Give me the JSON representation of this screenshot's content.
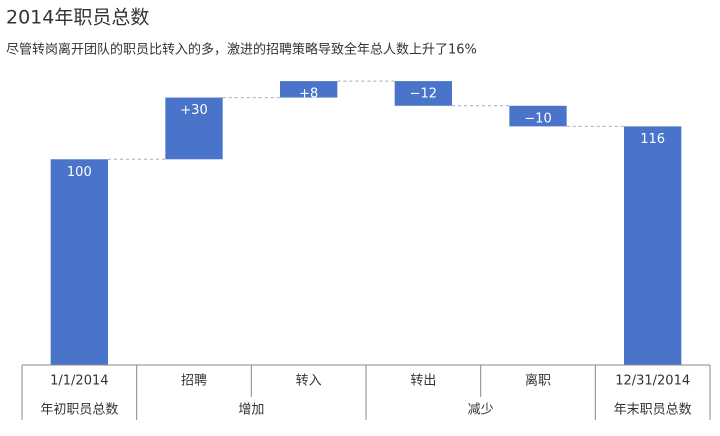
{
  "chart_data": {
    "type": "waterfall",
    "title": "2014年职员总数",
    "subtitle": "尽管转岗离开团队的职员比转入的多，激进的招聘策略导致全年总人数上升了16%",
    "categories": [
      "1/1/2014",
      "招聘",
      "转入",
      "转出",
      "离职",
      "12/31/2014"
    ],
    "category_groups": [
      "年初职员总数",
      "增加",
      "增加",
      "减少",
      "减少",
      "年末职员总数"
    ],
    "values": [
      100,
      30,
      8,
      -12,
      -10,
      116
    ],
    "value_labels": [
      "100",
      "+30",
      "+8",
      "−12",
      "−10",
      "116"
    ],
    "totals": [
      true,
      false,
      false,
      false,
      false,
      true
    ],
    "color": "#4a74c9",
    "ylim": [
      0,
      140
    ]
  }
}
